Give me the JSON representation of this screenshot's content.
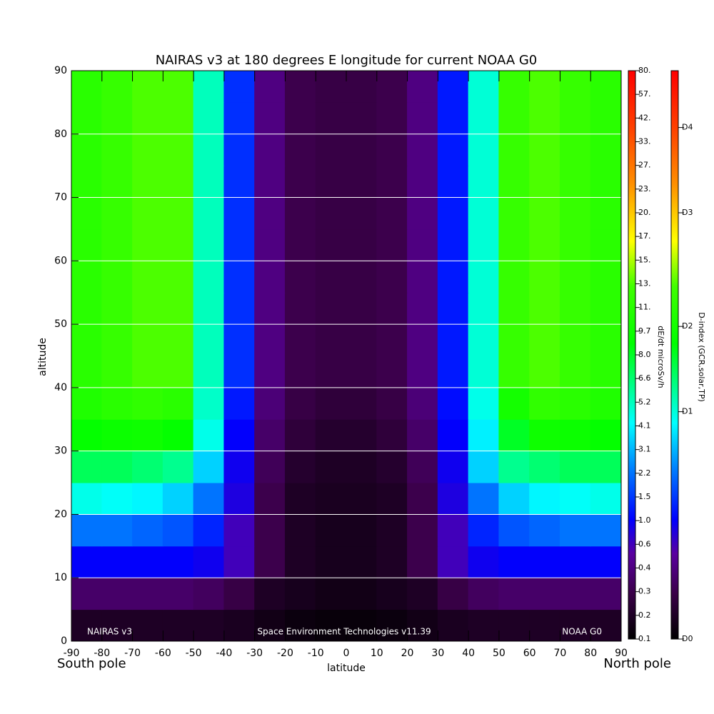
{
  "chart_data": {
    "type": "heatmap",
    "title": "NAIRAS v3 at 180 degrees E longitude for current NOAA G0",
    "x_label": "latitude",
    "y_label": "altitude",
    "annotations": [
      "NAIRAS v3",
      "Space Environment Technologies v11.39",
      "NOAA G0",
      "South pole",
      "North pole"
    ],
    "x": [
      -85,
      -75,
      -65,
      -55,
      -45,
      -35,
      -25,
      -15,
      -5,
      5,
      15,
      25,
      35,
      45,
      55,
      65,
      75,
      85
    ],
    "y": [
      2.5,
      7.5,
      12.5,
      17.5,
      22.5,
      27.5,
      32.5,
      37.5,
      42.5,
      47.5,
      52.5,
      57.5,
      62.5,
      67.5,
      72.5,
      77.5,
      82.5,
      87.5
    ],
    "values": [
      [
        0.2,
        0.2,
        0.2,
        0.2,
        0.2,
        0.18,
        0.15,
        0.13,
        0.12,
        0.12,
        0.13,
        0.15,
        0.18,
        0.2,
        0.2,
        0.2,
        0.2,
        0.2
      ],
      [
        0.35,
        0.35,
        0.35,
        0.35,
        0.33,
        0.28,
        0.2,
        0.17,
        0.15,
        0.15,
        0.17,
        0.2,
        0.28,
        0.33,
        0.35,
        0.35,
        0.35,
        0.35
      ],
      [
        1.0,
        1.0,
        1.0,
        1.0,
        0.9,
        0.6,
        0.3,
        0.2,
        0.17,
        0.17,
        0.2,
        0.3,
        0.6,
        0.9,
        1.0,
        1.0,
        1.0,
        1.0
      ],
      [
        2.2,
        2.2,
        2.0,
        1.8,
        1.3,
        0.6,
        0.3,
        0.2,
        0.17,
        0.17,
        0.2,
        0.3,
        0.6,
        1.3,
        1.8,
        2.0,
        2.2,
        2.2
      ],
      [
        4.5,
        4.3,
        4.1,
        3.5,
        2.2,
        0.8,
        0.3,
        0.2,
        0.18,
        0.18,
        0.2,
        0.3,
        0.8,
        2.2,
        3.5,
        4.1,
        4.3,
        4.5
      ],
      [
        7.0,
        7.0,
        6.6,
        6.0,
        3.5,
        0.9,
        0.32,
        0.22,
        0.2,
        0.2,
        0.22,
        0.32,
        0.9,
        3.5,
        6.0,
        6.6,
        7.0,
        7.0
      ],
      [
        9.0,
        9.5,
        9.7,
        9.0,
        4.5,
        1.0,
        0.35,
        0.25,
        0.22,
        0.22,
        0.25,
        0.35,
        1.0,
        4.0,
        8.0,
        9.7,
        9.5,
        9.0
      ],
      [
        10.5,
        11,
        11.5,
        11,
        5.0,
        1.2,
        0.38,
        0.28,
        0.25,
        0.25,
        0.28,
        0.38,
        1.1,
        4.5,
        10,
        11.5,
        11,
        10.5
      ],
      [
        11,
        12,
        13,
        13,
        5.2,
        1.4,
        0.4,
        0.3,
        0.28,
        0.28,
        0.3,
        0.4,
        1.2,
        4.8,
        12,
        13,
        12,
        11
      ],
      [
        11,
        12,
        13,
        13,
        5.2,
        1.4,
        0.4,
        0.3,
        0.28,
        0.28,
        0.3,
        0.4,
        1.2,
        4.8,
        12,
        13,
        12,
        11
      ],
      [
        11,
        12,
        13,
        13,
        5.2,
        1.4,
        0.4,
        0.3,
        0.28,
        0.28,
        0.3,
        0.4,
        1.2,
        4.8,
        12,
        13,
        12,
        11
      ],
      [
        11,
        12,
        13,
        13,
        5.2,
        1.4,
        0.4,
        0.3,
        0.28,
        0.28,
        0.3,
        0.4,
        1.2,
        4.8,
        12,
        13,
        12,
        11
      ],
      [
        11,
        12,
        13,
        13,
        5.2,
        1.4,
        0.4,
        0.3,
        0.28,
        0.28,
        0.3,
        0.4,
        1.2,
        4.8,
        12,
        13,
        12,
        11
      ],
      [
        11,
        12,
        13,
        13,
        5.2,
        1.4,
        0.4,
        0.3,
        0.28,
        0.28,
        0.3,
        0.4,
        1.2,
        4.8,
        12,
        13,
        12,
        11
      ],
      [
        11,
        12,
        13,
        13,
        5.2,
        1.4,
        0.4,
        0.3,
        0.28,
        0.28,
        0.3,
        0.4,
        1.2,
        4.8,
        12,
        13,
        12,
        11
      ],
      [
        11,
        12,
        13,
        13,
        5.2,
        1.4,
        0.4,
        0.3,
        0.28,
        0.28,
        0.3,
        0.4,
        1.2,
        4.8,
        12,
        13,
        12,
        11
      ],
      [
        11,
        12,
        13,
        13,
        5.2,
        1.4,
        0.4,
        0.3,
        0.28,
        0.28,
        0.3,
        0.4,
        1.2,
        4.8,
        12,
        13,
        12,
        11
      ],
      [
        11,
        12,
        13,
        13,
        5.2,
        1.4,
        0.4,
        0.3,
        0.28,
        0.28,
        0.3,
        0.4,
        1.2,
        4.8,
        12,
        13,
        12,
        11
      ]
    ],
    "xlim": [
      -90,
      90
    ],
    "xticks": [
      -90,
      -80,
      -70,
      -60,
      -50,
      -40,
      -30,
      -20,
      -10,
      0,
      10,
      20,
      30,
      40,
      50,
      60,
      70,
      80,
      90
    ],
    "ylim": [
      0,
      90
    ],
    "yticks": [
      0,
      10,
      20,
      30,
      40,
      50,
      60,
      70,
      80,
      90
    ],
    "grid": true,
    "grid_color": "#ffffff",
    "colorbar_label": "dE/dt microSv/h",
    "colorbar_ticks": [
      0.1,
      0.2,
      0.3,
      0.4,
      0.6,
      {
        "value": 1.0,
        "label": "1.0"
      },
      1.5,
      2.2,
      3.1,
      4.1,
      5.2,
      6.6,
      {
        "value": 8.0,
        "label": "8.0"
      },
      9.7,
      {
        "value": 11,
        "label": "11."
      },
      {
        "value": 13,
        "label": "13."
      },
      {
        "value": 15,
        "label": "15."
      },
      {
        "value": 17,
        "label": "17."
      },
      {
        "value": 20,
        "label": "20."
      },
      {
        "value": 23,
        "label": "23."
      },
      {
        "value": 27,
        "label": "27."
      },
      {
        "value": 33,
        "label": "33."
      },
      {
        "value": 42,
        "label": "42."
      },
      {
        "value": 57,
        "label": "57."
      },
      {
        "value": 80,
        "label": "80."
      }
    ],
    "colormap": [
      [
        0,
        "#000000"
      ],
      [
        0.08,
        "#3a0048"
      ],
      [
        0.15,
        "#5a00a0"
      ],
      [
        0.21,
        "#0000ff"
      ],
      [
        0.3,
        "#0080ff"
      ],
      [
        0.38,
        "#00ffff"
      ],
      [
        0.45,
        "#00ff80"
      ],
      [
        0.52,
        "#00ff00"
      ],
      [
        0.62,
        "#40ff00"
      ],
      [
        0.7,
        "#ffff00"
      ],
      [
        0.8,
        "#ff9000"
      ],
      [
        0.9,
        "#ff4000"
      ],
      [
        1,
        "#ff0000"
      ]
    ],
    "d_index_label": "D-index (GCR,solar,TP)",
    "d_index_lim": [
      0,
      1
    ],
    "d_index_ticks": [
      {
        "value": 0,
        "label": "D0"
      },
      {
        "value": 0.4,
        "label": "D1"
      },
      {
        "value": 0.55,
        "label": "D2"
      },
      {
        "value": 0.75,
        "label": "D3"
      },
      {
        "value": 0.9,
        "label": "D4"
      }
    ]
  }
}
